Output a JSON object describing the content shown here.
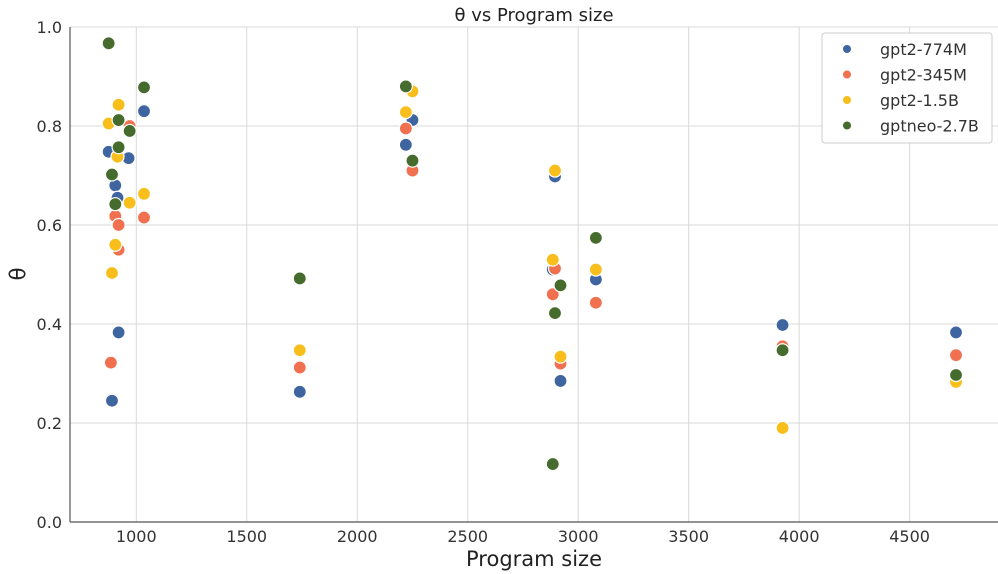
{
  "chart_data": {
    "type": "scatter",
    "title": "θ vs Program size",
    "xlabel": "Program size",
    "ylabel": "θ",
    "xlim": [
      700,
      4900
    ],
    "ylim": [
      0,
      1.0
    ],
    "xticks": [
      1000,
      1500,
      2000,
      2500,
      3000,
      3500,
      4000,
      4500
    ],
    "yticks": [
      0.0,
      0.2,
      0.4,
      0.6,
      0.8,
      1.0
    ],
    "xtick_labels": [
      "1000",
      "1500",
      "2000",
      "2500",
      "3000",
      "3500",
      "4000",
      "4500"
    ],
    "ytick_labels": [
      "0.0",
      "0.2",
      "0.4",
      "0.6",
      "0.8",
      "1.0"
    ],
    "grid": true,
    "legend_position": "top-right",
    "series": [
      {
        "name": "gpt2-774M",
        "color": "#3f65a0",
        "points": [
          [
            875,
            0.748
          ],
          [
            890,
            0.245
          ],
          [
            905,
            0.68
          ],
          [
            915,
            0.655
          ],
          [
            920,
            0.383
          ],
          [
            965,
            0.735
          ],
          [
            1035,
            0.83
          ],
          [
            1740,
            0.263
          ],
          [
            2220,
            0.762
          ],
          [
            2250,
            0.812
          ],
          [
            2885,
            0.51
          ],
          [
            2895,
            0.698
          ],
          [
            2920,
            0.285
          ],
          [
            3080,
            0.49
          ],
          [
            3925,
            0.398
          ],
          [
            4710,
            0.383
          ]
        ]
      },
      {
        "name": "gpt2-345M",
        "color": "#f07050",
        "points": [
          [
            885,
            0.322
          ],
          [
            905,
            0.618
          ],
          [
            920,
            0.6
          ],
          [
            920,
            0.55
          ],
          [
            970,
            0.8
          ],
          [
            1035,
            0.615
          ],
          [
            1740,
            0.312
          ],
          [
            2220,
            0.795
          ],
          [
            2250,
            0.71
          ],
          [
            2885,
            0.46
          ],
          [
            2895,
            0.512
          ],
          [
            2920,
            0.32
          ],
          [
            3080,
            0.443
          ],
          [
            3925,
            0.355
          ],
          [
            4710,
            0.337
          ]
        ]
      },
      {
        "name": "gpt2-1.5B",
        "color": "#f8bf1c",
        "points": [
          [
            875,
            0.805
          ],
          [
            890,
            0.503
          ],
          [
            905,
            0.56
          ],
          [
            915,
            0.738
          ],
          [
            920,
            0.843
          ],
          [
            970,
            0.645
          ],
          [
            1035,
            0.663
          ],
          [
            1740,
            0.347
          ],
          [
            2220,
            0.828
          ],
          [
            2250,
            0.87
          ],
          [
            2885,
            0.53
          ],
          [
            2895,
            0.71
          ],
          [
            2920,
            0.334
          ],
          [
            3080,
            0.51
          ],
          [
            3925,
            0.19
          ],
          [
            4710,
            0.283
          ]
        ]
      },
      {
        "name": "gptneo-2.7B",
        "color": "#456c2c",
        "points": [
          [
            875,
            0.967
          ],
          [
            890,
            0.702
          ],
          [
            905,
            0.642
          ],
          [
            920,
            0.812
          ],
          [
            920,
            0.757
          ],
          [
            970,
            0.79
          ],
          [
            1035,
            0.878
          ],
          [
            1740,
            0.492
          ],
          [
            2220,
            0.88
          ],
          [
            2250,
            0.73
          ],
          [
            2885,
            0.117
          ],
          [
            2895,
            0.422
          ],
          [
            2920,
            0.478
          ],
          [
            3080,
            0.574
          ],
          [
            3925,
            0.347
          ],
          [
            4710,
            0.297
          ]
        ]
      }
    ]
  }
}
